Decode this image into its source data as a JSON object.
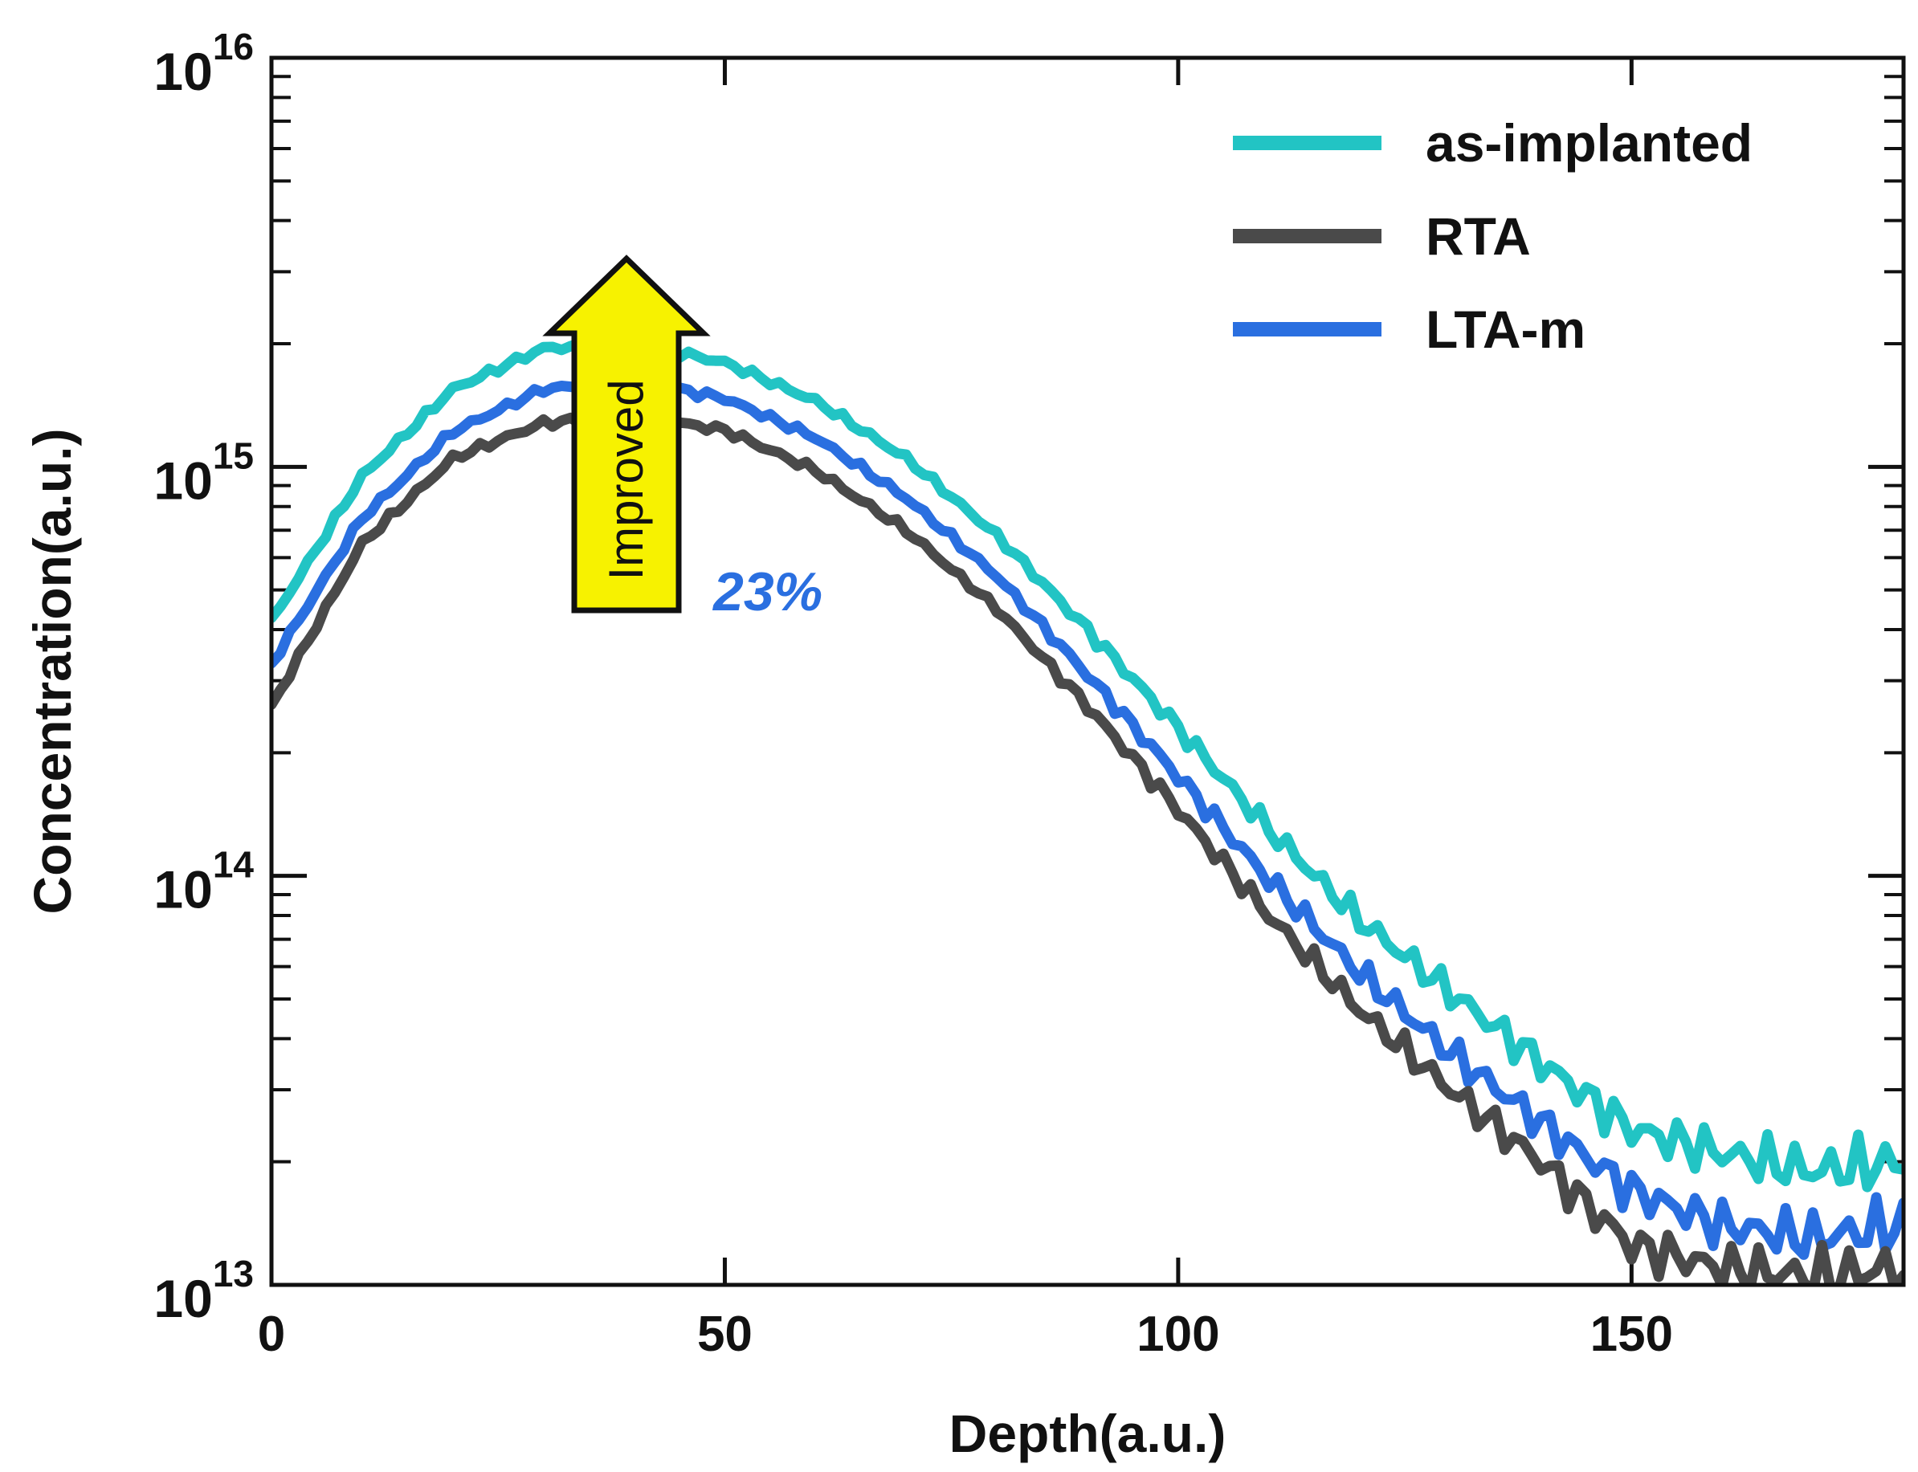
{
  "chart_data": {
    "type": "line",
    "title": "",
    "xlabel": "Depth(a.u.)",
    "ylabel": "Concentration(a.u.)",
    "xlim": [
      0,
      180
    ],
    "ylim": [
      10000000000000.0,
      1e+16
    ],
    "yscale": "log",
    "grid": false,
    "legend_position": "top-right",
    "x_ticks": [
      0,
      50,
      100,
      150
    ],
    "x_tick_labels": [
      "0",
      "50",
      "100",
      "150"
    ],
    "y_ticks": [
      {
        "value": 10000000000000.0,
        "base": "10",
        "exp": "13"
      },
      {
        "value": 100000000000000.0,
        "base": "10",
        "exp": "14"
      },
      {
        "value": 1000000000000000.0,
        "base": "10",
        "exp": "15"
      },
      {
        "value": 1e+16,
        "base": "10",
        "exp": "16"
      }
    ],
    "x": [
      0,
      10,
      20,
      30,
      40,
      50,
      60,
      70,
      80,
      90,
      100,
      110,
      120,
      130,
      140,
      150,
      160,
      170,
      180
    ],
    "series": [
      {
        "name": "as-implanted",
        "color": "#22c4c4",
        "values": [
          420000000000000.0,
          950000000000000.0,
          1550000000000000.0,
          1950000000000000.0,
          2000000000000000.0,
          1800000000000000.0,
          1450000000000000.0,
          1050000000000000.0,
          680000000000000.0,
          400000000000000.0,
          230000000000000.0,
          130000000000000.0,
          78000000000000.0,
          52000000000000.0,
          35000000000000.0,
          24000000000000.0,
          21000000000000.0,
          19000000000000.0,
          20000000000000.0
        ]
      },
      {
        "name": "RTA",
        "color": "#4a4a4a",
        "values": [
          260000000000000.0,
          650000000000000.0,
          1050000000000000.0,
          1280000000000000.0,
          1330000000000000.0,
          1230000000000000.0,
          980000000000000.0,
          700000000000000.0,
          450000000000000.0,
          260000000000000.0,
          145000000000000.0,
          80000000000000.0,
          47000000000000.0,
          30000000000000.0,
          20000000000000.0,
          12500000000000.0,
          11000000000000.0,
          10500000000000.0,
          11000000000000.0
        ]
      },
      {
        "name": "LTA-m",
        "color": "#2a6fe0",
        "values": [
          330000000000000.0,
          750000000000000.0,
          1220000000000000.0,
          1550000000000000.0,
          1620000000000000.0,
          1470000000000000.0,
          1180000000000000.0,
          840000000000000.0,
          540000000000000.0,
          310000000000000.0,
          175000000000000.0,
          98000000000000.0,
          58000000000000.0,
          37000000000000.0,
          25000000000000.0,
          17000000000000.0,
          14000000000000.0,
          13000000000000.0,
          14000000000000.0
        ]
      }
    ],
    "annotations": {
      "arrow_label": "Improved",
      "arrow_color": "#f7f200",
      "percent_label": "23%",
      "percent_color": "#2a6fe0"
    }
  }
}
